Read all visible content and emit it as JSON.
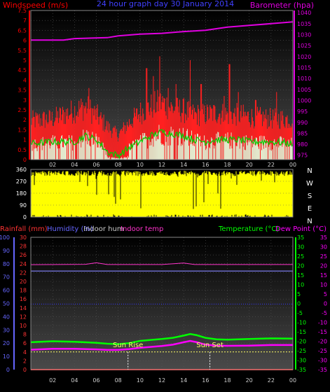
{
  "colors": {
    "windspeed": "#ff0000",
    "gust": "#ff2020",
    "barometer": "#e000e0",
    "wind_avg": "#00d000",
    "wind_low": "#e0ffe0",
    "direction": "#ffff00",
    "title": "#4040ff",
    "rainfall": "#ff3333",
    "humidity": "#6666ff",
    "indoor_hum": "#cccccc",
    "indoor_temp": "#ff33cc",
    "temperature": "#00ff00",
    "dew_point": "#ff00ff",
    "sun": "#ffff66"
  },
  "chart_data": [
    {
      "type": "bar",
      "title": "24 hour graph day  30 January 2014",
      "left_label": "Windspeed (m/s)",
      "right_label": "Barometer (hpa)",
      "x_ticks": [
        "02",
        "04",
        "06",
        "08",
        "10",
        "12",
        "14",
        "16",
        "18",
        "20",
        "22",
        "00"
      ],
      "y_left_ticks": [
        "7.5",
        "7",
        "6.5",
        "6",
        "5.5",
        "5",
        "4.5",
        "4",
        "3.5",
        "3",
        "2.5",
        "2",
        "1.5",
        "1",
        "0.5",
        "0"
      ],
      "y_left_range": [
        0,
        7.5
      ],
      "y_right_ticks": [
        "1040",
        "1035",
        "1030",
        "1025",
        "1020",
        "1015",
        "1010",
        "1005",
        "1000",
        "995",
        "990",
        "985",
        "980",
        "975"
      ],
      "y_right_range": [
        973,
        1041
      ],
      "x_range_hours": [
        0,
        24
      ],
      "gust_profile": [
        [
          0,
          1.9
        ],
        [
          2,
          2.0
        ],
        [
          4,
          2.4
        ],
        [
          5,
          2.6
        ],
        [
          6,
          2.2
        ],
        [
          7,
          1.6
        ],
        [
          8,
          1.2
        ],
        [
          9,
          1.8
        ],
        [
          10,
          2.3
        ],
        [
          11,
          2.6
        ],
        [
          12,
          2.8
        ],
        [
          13,
          2.5
        ],
        [
          14,
          2.4
        ],
        [
          15,
          2.2
        ],
        [
          16,
          2.2
        ],
        [
          17,
          2.3
        ],
        [
          18,
          2.2
        ],
        [
          19,
          2.2
        ],
        [
          20,
          2.1
        ],
        [
          22,
          2.0
        ],
        [
          24,
          2.0
        ]
      ],
      "gust_spikes": [
        [
          5.3,
          3.6
        ],
        [
          10.6,
          4.6
        ],
        [
          11.2,
          4.2
        ],
        [
          11.8,
          5.2
        ],
        [
          12.6,
          3.6
        ],
        [
          13.3,
          3.8
        ],
        [
          14.6,
          5.0
        ],
        [
          15.6,
          3.8
        ],
        [
          17.7,
          3.2
        ],
        [
          18.2,
          4.8
        ],
        [
          19.0,
          3.4
        ],
        [
          20.6,
          3.0
        ],
        [
          22.5,
          3.4
        ]
      ],
      "wind_avg": [
        [
          0,
          0.8
        ],
        [
          2,
          0.9
        ],
        [
          4,
          0.9
        ],
        [
          5,
          1.2
        ],
        [
          6,
          1.0
        ],
        [
          7,
          0.4
        ],
        [
          8,
          0.2
        ],
        [
          9,
          0.6
        ],
        [
          10,
          0.9
        ],
        [
          11,
          1.2
        ],
        [
          12,
          1.4
        ],
        [
          13,
          1.3
        ],
        [
          14,
          1.2
        ],
        [
          15,
          1.0
        ],
        [
          16,
          0.9
        ],
        [
          17,
          1.0
        ],
        [
          18,
          1.0
        ],
        [
          19,
          1.0
        ],
        [
          20,
          0.9
        ],
        [
          22,
          0.9
        ],
        [
          24,
          0.8
        ]
      ],
      "barometer": [
        [
          0,
          1027.5
        ],
        [
          3,
          1027.5
        ],
        [
          4,
          1028.2
        ],
        [
          7,
          1028.6
        ],
        [
          8,
          1029.4
        ],
        [
          10,
          1030.2
        ],
        [
          12,
          1030.6
        ],
        [
          14,
          1031.4
        ],
        [
          16,
          1032.0
        ],
        [
          18,
          1033.4
        ],
        [
          20,
          1034.2
        ],
        [
          22,
          1035.0
        ],
        [
          24,
          1035.8
        ]
      ]
    },
    {
      "type": "bar",
      "y_left_ticks": [
        "360",
        "270",
        "180",
        "90",
        "0"
      ],
      "y_left_range": [
        0,
        360
      ],
      "compass_labels": [
        "N",
        "W",
        "S",
        "E",
        "N"
      ],
      "x_range_hours": [
        0,
        24
      ],
      "direction_note_level": 330
    },
    {
      "type": "line",
      "labels": {
        "rainfall": "Rainfall (mm)",
        "humidity": "Humidity (%)",
        "indoor_hum": "Indoor hum",
        "indoor_temp": "Indoor temp",
        "temperature": "Temperature (°C)",
        "dew_point": "Dew Point (°C)"
      },
      "x_ticks": [
        "02",
        "04",
        "06",
        "08",
        "10",
        "12",
        "14",
        "16",
        "18",
        "20",
        "22",
        "00"
      ],
      "humidity_ticks": [
        "100",
        "90",
        "80",
        "70",
        "60",
        "50",
        "40",
        "30",
        "20",
        "10",
        "0"
      ],
      "humidity_range": [
        0,
        100
      ],
      "rain_ticks": [
        "30",
        "28",
        "26",
        "24",
        "22",
        "20",
        "18",
        "16",
        "14",
        "12",
        "10",
        "8",
        "6",
        "4",
        "2",
        "0"
      ],
      "rain_range": [
        0,
        30
      ],
      "temp_ticks": [
        "35",
        "30",
        "25",
        "20",
        "15",
        "10",
        "5",
        "0",
        "-5",
        "-10",
        "-15",
        "-20",
        "-25",
        "-30",
        "-35"
      ],
      "temp_range": [
        -35,
        35
      ],
      "dew_ticks": [
        "35",
        "30",
        "25",
        "20",
        "15",
        "10",
        "5",
        "0",
        "-5",
        "-10",
        "-15",
        "-20",
        "-25",
        "-30",
        "-35"
      ],
      "x_range_hours": [
        0,
        24
      ],
      "indoor_hum": [
        [
          0,
          74.5
        ],
        [
          24,
          74.5
        ]
      ],
      "indoor_temp": [
        [
          0,
          20.5
        ],
        [
          5,
          20.7
        ],
        [
          6,
          21.5
        ],
        [
          7,
          20.6
        ],
        [
          12,
          20.6
        ],
        [
          14,
          21.4
        ],
        [
          15,
          20.6
        ],
        [
          24,
          20.6
        ]
      ],
      "humidity_ref": [
        [
          0,
          49.5
        ],
        [
          24,
          49.5
        ]
      ],
      "temperature": [
        [
          0,
          -20.5
        ],
        [
          2,
          -20.0
        ],
        [
          4,
          -20.3
        ],
        [
          6,
          -20.8
        ],
        [
          7,
          -21.3
        ],
        [
          8,
          -21.5
        ],
        [
          9,
          -21.0
        ],
        [
          10,
          -19.8
        ],
        [
          12,
          -18.8
        ],
        [
          13,
          -18.2
        ],
        [
          14,
          -17.0
        ],
        [
          14.6,
          -16.2
        ],
        [
          15.2,
          -16.8
        ],
        [
          16,
          -18.2
        ],
        [
          17,
          -19.0
        ],
        [
          18,
          -19.2
        ],
        [
          20,
          -18.8
        ],
        [
          22,
          -18.5
        ],
        [
          24,
          -18.6
        ]
      ],
      "dew_point": [
        [
          0,
          -24.5
        ],
        [
          2,
          -24.0
        ],
        [
          4,
          -24.0
        ],
        [
          6,
          -24.3
        ],
        [
          7,
          -24.6
        ],
        [
          8,
          -24.6
        ],
        [
          9,
          -24.2
        ],
        [
          10,
          -23.5
        ],
        [
          12,
          -22.5
        ],
        [
          13,
          -21.8
        ],
        [
          14,
          -20.5
        ],
        [
          14.6,
          -19.8
        ],
        [
          15.2,
          -20.5
        ],
        [
          16,
          -21.8
        ],
        [
          17,
          -22.3
        ],
        [
          18,
          -22.4
        ],
        [
          20,
          -22.3
        ],
        [
          22,
          -22.0
        ],
        [
          24,
          -22.0
        ]
      ],
      "rain_level": [
        [
          0,
          0
        ],
        [
          24,
          0
        ]
      ],
      "sun_marker_level": 4,
      "sun_rise": {
        "label": "Sun Rise",
        "hour": 8.9
      },
      "sun_set": {
        "label": "Sun Set",
        "hour": 16.4
      }
    }
  ]
}
